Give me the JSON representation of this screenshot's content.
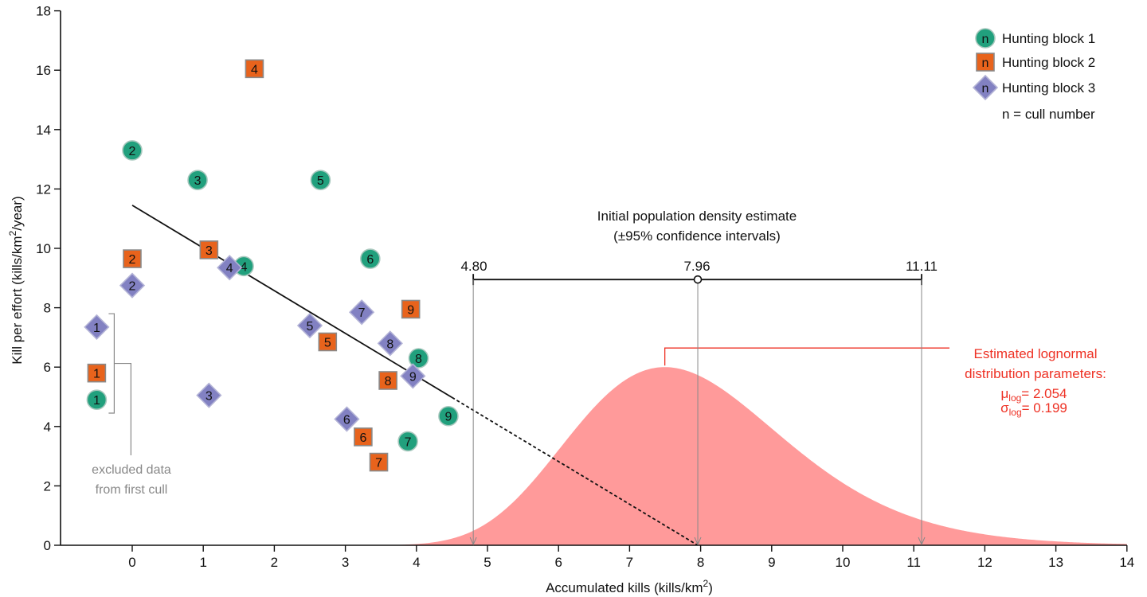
{
  "chart_data": {
    "type": "scatter",
    "xlabel": "Accumulated kills (kills/km",
    "xlabel_sup": "2",
    "xlabel_end": ")",
    "ylabel": "Kill per effort (kills/km",
    "ylabel_sup": "2",
    "ylabel_end": "/year)",
    "xlim": [
      -1,
      14
    ],
    "ylim": [
      0,
      18
    ],
    "xticks": [
      0,
      1,
      2,
      3,
      4,
      5,
      6,
      7,
      8,
      9,
      10,
      11,
      12,
      13,
      14
    ],
    "yticks": [
      0,
      2,
      4,
      6,
      8,
      10,
      12,
      14,
      16,
      18
    ],
    "grid": false,
    "legend_position": "top-right",
    "series": [
      {
        "name": "Hunting block 1",
        "marker": "circle",
        "color": "#21a07d",
        "legend_marker_label": "n",
        "points": [
          {
            "label": "1",
            "x": -0.5,
            "y": 4.9,
            "excluded": true
          },
          {
            "label": "2",
            "x": 0.0,
            "y": 13.3
          },
          {
            "label": "3",
            "x": 0.92,
            "y": 12.3
          },
          {
            "label": "4",
            "x": 1.57,
            "y": 9.4
          },
          {
            "label": "5",
            "x": 2.65,
            "y": 12.3
          },
          {
            "label": "6",
            "x": 3.35,
            "y": 9.65
          },
          {
            "label": "7",
            "x": 3.88,
            "y": 3.5
          },
          {
            "label": "8",
            "x": 4.03,
            "y": 6.3
          },
          {
            "label": "9",
            "x": 4.45,
            "y": 4.35
          }
        ]
      },
      {
        "name": "Hunting block 2",
        "marker": "square",
        "color": "#e8631c",
        "legend_marker_label": "n",
        "points": [
          {
            "label": "1",
            "x": -0.5,
            "y": 5.8,
            "excluded": true
          },
          {
            "label": "2",
            "x": 0.0,
            "y": 9.65
          },
          {
            "label": "3",
            "x": 1.08,
            "y": 9.95
          },
          {
            "label": "4",
            "x": 1.72,
            "y": 16.05
          },
          {
            "label": "5",
            "x": 2.75,
            "y": 6.85
          },
          {
            "label": "6",
            "x": 3.25,
            "y": 3.65
          },
          {
            "label": "7",
            "x": 3.47,
            "y": 2.8
          },
          {
            "label": "8",
            "x": 3.6,
            "y": 5.55
          },
          {
            "label": "9",
            "x": 3.92,
            "y": 7.95
          }
        ]
      },
      {
        "name": "Hunting block 3",
        "marker": "diamond",
        "color": "#8281c2",
        "legend_marker_label": "n",
        "points": [
          {
            "label": "1",
            "x": -0.5,
            "y": 7.35,
            "excluded": true
          },
          {
            "label": "2",
            "x": 0.0,
            "y": 8.75
          },
          {
            "label": "3",
            "x": 1.08,
            "y": 5.05
          },
          {
            "label": "4",
            "x": 1.37,
            "y": 9.35
          },
          {
            "label": "5",
            "x": 2.5,
            "y": 7.4
          },
          {
            "label": "6",
            "x": 3.02,
            "y": 4.25
          },
          {
            "label": "7",
            "x": 3.23,
            "y": 7.85
          },
          {
            "label": "8",
            "x": 3.63,
            "y": 6.8
          },
          {
            "label": "9",
            "x": 3.95,
            "y": 5.7
          }
        ]
      }
    ],
    "legend_note": "n = cull number",
    "regression": {
      "solid": {
        "x": [
          0,
          4.5
        ],
        "y": [
          11.45,
          4.98
        ]
      },
      "dashed": {
        "x": [
          4.5,
          7.96
        ],
        "y": [
          4.98,
          0
        ]
      }
    },
    "excluded_label": [
      "excluded data",
      "from first cull"
    ],
    "estimate": {
      "title": [
        "Initial population density estimate",
        "(±95% confidence intervals)"
      ],
      "lower": 4.8,
      "mean": 7.96,
      "upper": 11.11,
      "lower_label": "4.80",
      "mean_label": "7.96",
      "upper_label": "11.11",
      "level_y": 8.95
    },
    "lognormal": {
      "mu_log": 2.054,
      "sigma_log": 0.199,
      "peak_y": 6.0,
      "color": "#ff9a9a",
      "label_color": "#ee3124",
      "label_lines": [
        "Estimated lognormal",
        "distribution parameters:"
      ],
      "mu_symbol": "μ",
      "sigma_symbol": "σ",
      "param_subscript": "log",
      "mu_value": "= 2.054",
      "sigma_value": "= 0.199"
    }
  }
}
